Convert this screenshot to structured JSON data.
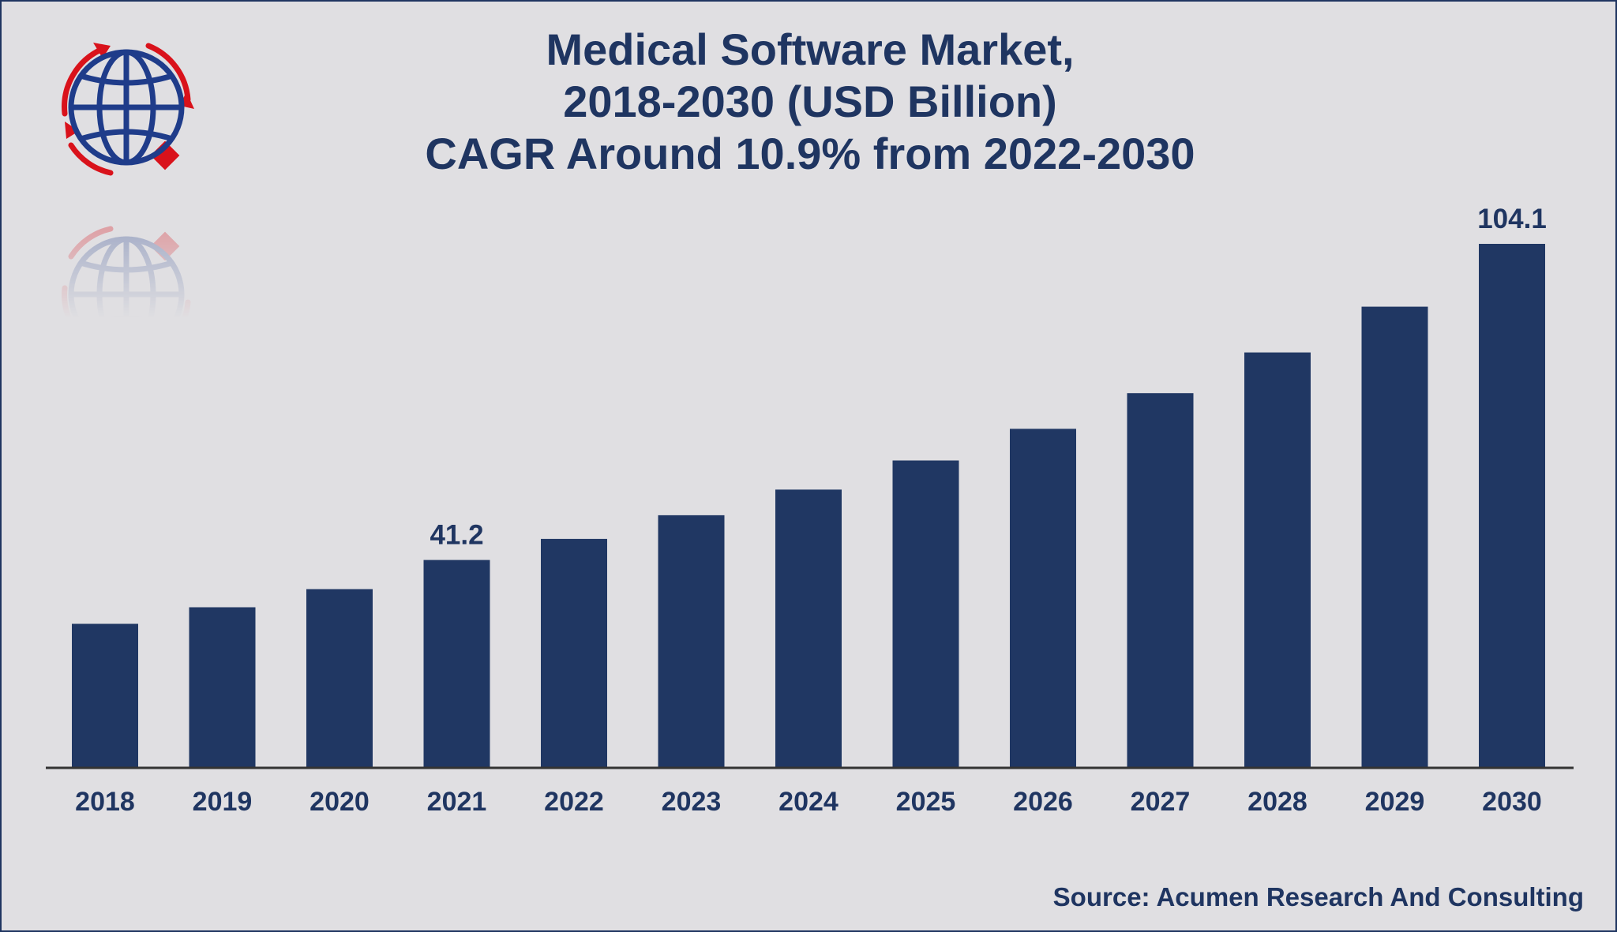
{
  "title_lines": [
    "Medical Software Market,",
    "2018-2030 (USD Billion)",
    "CAGR Around 10.9% from 2022-2030"
  ],
  "source": "Source: Acumen Research And Consulting",
  "colors": {
    "bar": "#203763",
    "text": "#1f3561",
    "background": "#e0dfe2",
    "axis": "#333333",
    "logo_globe": "#1f3c8a",
    "logo_accent": "#d9121b"
  },
  "icons": {
    "logo": "globe-with-arrows-icon"
  },
  "chart_data": {
    "type": "bar",
    "categories": [
      "2018",
      "2019",
      "2020",
      "2021",
      "2022",
      "2023",
      "2024",
      "2025",
      "2026",
      "2027",
      "2028",
      "2029",
      "2030"
    ],
    "values": [
      28.5,
      31.8,
      35.4,
      41.2,
      45.4,
      50.1,
      55.2,
      61.0,
      67.3,
      74.4,
      82.5,
      91.6,
      104.1
    ],
    "data_labels": [
      {
        "category": "2021",
        "text": "41.2"
      },
      {
        "category": "2030",
        "text": "104.1"
      }
    ],
    "ylim": [
      0,
      110
    ],
    "grid": false,
    "legend": "none",
    "xlabel": "",
    "ylabel": ""
  }
}
